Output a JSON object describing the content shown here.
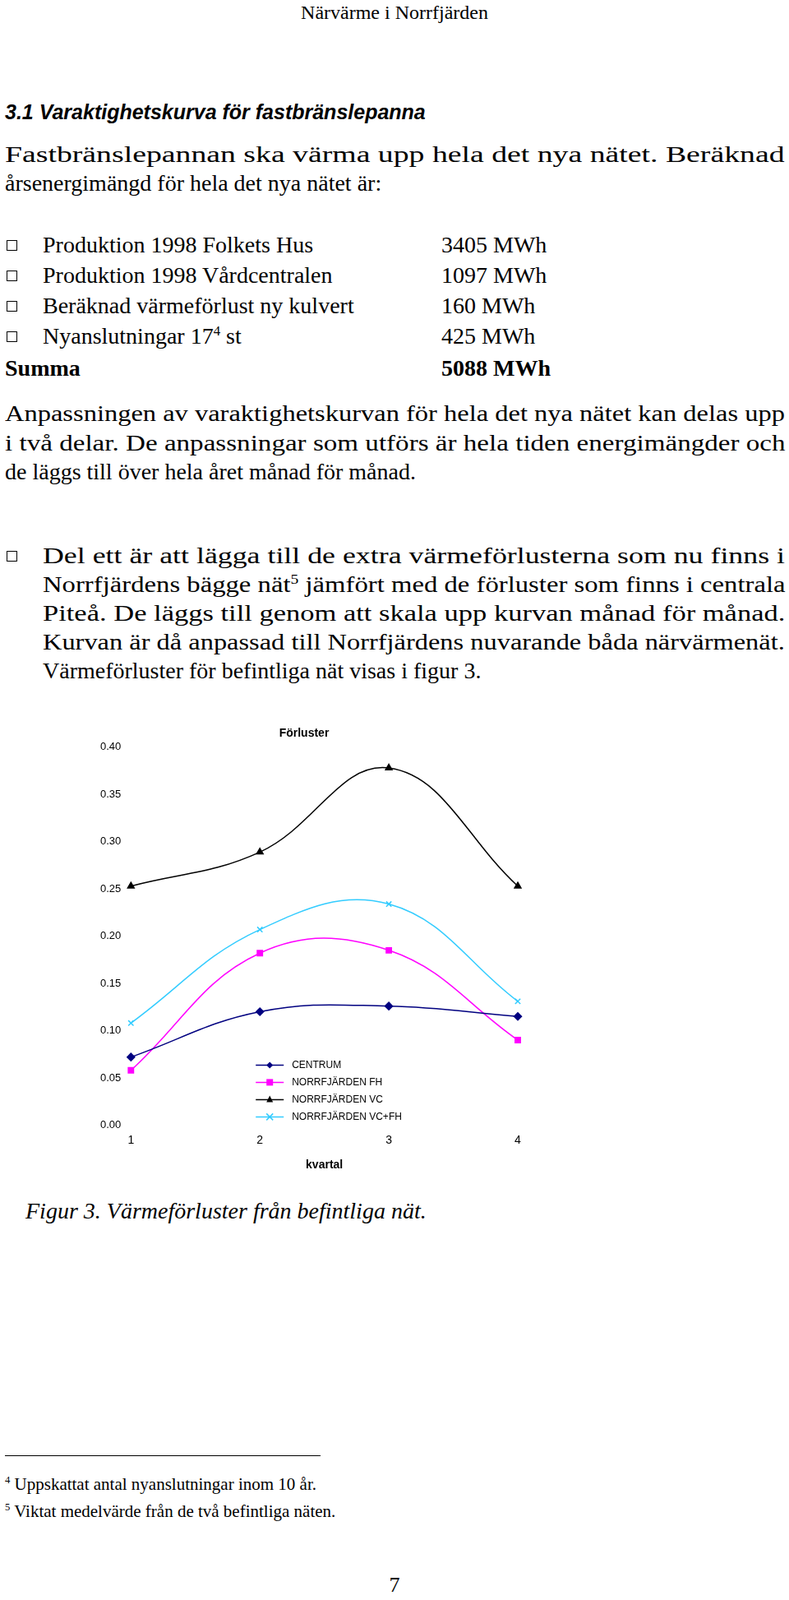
{
  "header": "Närvärme i Norrfjärden",
  "heading": "3.1 Varaktighetskurva för fastbränslepanna",
  "intro": [
    "Fastbränslepannan ska värma upp hela det nya nätet. Beräknad",
    "årsenergimängd för hela det nya nätet är:"
  ],
  "energy_table": {
    "rows": [
      {
        "label": [
          "Produktion 1998 Folkets Hus"
        ],
        "value": "3405 MWh"
      },
      {
        "label": [
          "Produktion 1998 Vårdcentralen"
        ],
        "value": "1097 MWh"
      },
      {
        "label": [
          "Beräknad värmeförlust ny kulvert"
        ],
        "value": "160 MWh"
      },
      {
        "label": [
          "Nyanslutningar 17",
          {
            "sup": "4"
          },
          " st"
        ],
        "value": "425 MWh"
      }
    ],
    "total": {
      "label": "Summa",
      "value": "5088 MWh"
    }
  },
  "paragraph": [
    "Anpassningen av varaktighetskurvan för hela det nya nätet kan delas upp",
    "i två delar. De anpassningar som utförs är hela tiden energimängder och",
    "de läggs till över hela året månad för månad."
  ],
  "bullet": [
    "Del ett är att lägga till de extra värmeförlusterna som nu finns i",
    [
      "Norrfjärdens bägge nät",
      {
        "sup": "5"
      },
      " jämfört med de förluster som finns i centrala"
    ],
    "Piteå. De läggs till genom att skala upp kurvan månad för månad.",
    "Kurvan är då anpassad till Norrfjärdens nuvarande båda närvärmenät.",
    "Värmeförluster för befintliga nät visas i figur 3."
  ],
  "chart_data": {
    "type": "line",
    "title": "Förluster",
    "x_label": "kvartal",
    "categories": [
      "1",
      "2",
      "3",
      "4"
    ],
    "series": [
      {
        "name": "CENTRUM",
        "color": "#000080",
        "marker": "diamond",
        "values": [
          0.072,
          0.12,
          0.126,
          0.115
        ]
      },
      {
        "name": "NORRFJÄRDEN FH",
        "color": "#ff00ff",
        "marker": "square",
        "values": [
          0.058,
          0.182,
          0.185,
          0.09
        ]
      },
      {
        "name": "NORRFJÄRDEN VC",
        "color": "#000000",
        "marker": "triangle",
        "values": [
          0.253,
          0.289,
          0.378,
          0.253
        ]
      },
      {
        "name": "NORRFJÄRDEN VC+FH",
        "color": "#33ccff",
        "marker": "x",
        "values": [
          0.108,
          0.207,
          0.234,
          0.131
        ]
      }
    ],
    "ylim": [
      0,
      0.4
    ],
    "yticks": [
      {
        "value": 0,
        "label": "0.00"
      },
      {
        "value": 0.05,
        "label": "0.05"
      },
      {
        "value": 0.1,
        "label": "0.10"
      },
      {
        "value": 0.15,
        "label": "0.15"
      },
      {
        "value": 0.2,
        "label": "0.20"
      },
      {
        "value": 0.25,
        "label": "0.25"
      },
      {
        "value": 0.3,
        "label": "0.30"
      },
      {
        "value": 0.35,
        "label": "0.35"
      },
      {
        "value": 0.4,
        "label": "0.40"
      }
    ],
    "grid": false,
    "legend": "lower center"
  },
  "caption": "Figur 3. Värmeförluster från befintliga nät.",
  "footnotes": [
    {
      "mark": "4",
      "text": "Uppskattat antal nyanslutningar inom 10 år."
    },
    {
      "mark": "5",
      "text": "Viktat medelvärde från de två befintliga näten."
    }
  ],
  "page_number": "7"
}
